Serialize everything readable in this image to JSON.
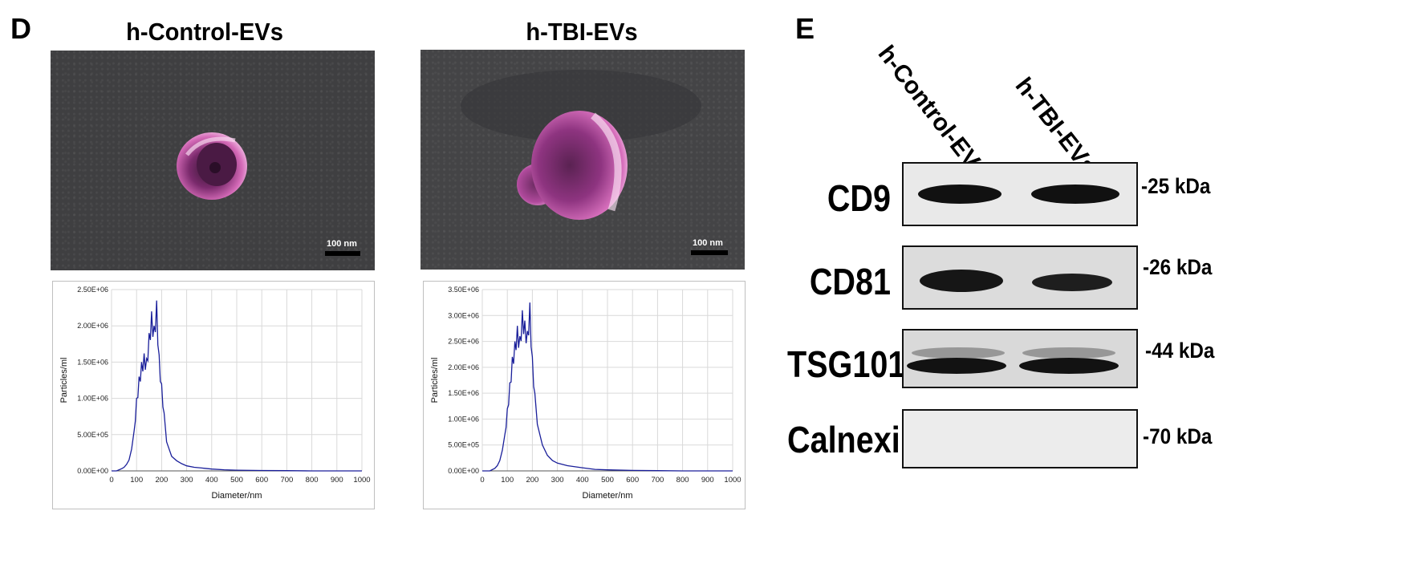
{
  "panels": {
    "d_letter": "D",
    "e_letter": "E"
  },
  "tem": [
    {
      "title": "h-Control-EVs",
      "scale_label": "100 nm"
    },
    {
      "title": "h-TBI-EVs",
      "scale_label": "100 nm"
    }
  ],
  "western_blot": {
    "lanes": [
      "h-Control-EVs",
      "h-TBI-EVs"
    ],
    "proteins": [
      {
        "name": "CD9",
        "marker": "-25 kDa"
      },
      {
        "name": "CD81",
        "marker": "-26 kDa"
      },
      {
        "name": "TSG101",
        "marker": "-44 kDa"
      },
      {
        "name": "Calnexin",
        "marker": "-70 kDa"
      }
    ]
  },
  "colors": {
    "tem_background": "#3f3f41",
    "vesicle_stain": "#c0489e",
    "line": "#1a1f9a",
    "grid": "#d9d9d9"
  },
  "chart_data": [
    {
      "type": "line",
      "title": "h-Control-EVs",
      "xlabel": "Diameter/nm",
      "ylabel": "Particles/ml",
      "xlim": [
        0,
        1000
      ],
      "ylim": [
        0,
        2500000
      ],
      "xticks": [
        "0",
        "100",
        "200",
        "300",
        "400",
        "500",
        "600",
        "700",
        "800",
        "900",
        "1000"
      ],
      "yticks": [
        "0.00E+00",
        "5.00E+05",
        "1.00E+06",
        "1.50E+06",
        "2.00E+06",
        "2.50E+06"
      ],
      "grid": true,
      "x": [
        0,
        20,
        40,
        50,
        60,
        70,
        80,
        90,
        100,
        110,
        120,
        130,
        140,
        150,
        160,
        170,
        180,
        190,
        200,
        210,
        220,
        240,
        260,
        280,
        300,
        330,
        360,
        400,
        450,
        500,
        600,
        700,
        800,
        900,
        1000
      ],
      "y": [
        0,
        0,
        30000,
        50000,
        90000,
        150000,
        300000,
        550000,
        1000000,
        1300000,
        1500000,
        1620000,
        1550000,
        1900000,
        2200000,
        2000000,
        2350000,
        1600000,
        1200000,
        800000,
        400000,
        200000,
        140000,
        100000,
        70000,
        50000,
        40000,
        25000,
        15000,
        10000,
        5000,
        3000,
        0,
        0,
        0
      ]
    },
    {
      "type": "line",
      "title": "h-TBI-EVs",
      "xlabel": "Diameter/nm",
      "ylabel": "Particles/ml",
      "xlim": [
        0,
        1000
      ],
      "ylim": [
        0,
        3500000
      ],
      "xticks": [
        "0",
        "100",
        "200",
        "300",
        "400",
        "500",
        "600",
        "700",
        "800",
        "900",
        "1000"
      ],
      "yticks": [
        "0.00E+00",
        "5.00E+05",
        "1.00E+06",
        "1.50E+06",
        "2.00E+06",
        "2.50E+06",
        "3.00E+06",
        "3.50E+06"
      ],
      "grid": true,
      "x": [
        0,
        30,
        50,
        60,
        70,
        80,
        90,
        100,
        110,
        120,
        130,
        140,
        150,
        160,
        170,
        180,
        190,
        200,
        210,
        220,
        240,
        260,
        280,
        300,
        340,
        400,
        450,
        500,
        600,
        700,
        800,
        900,
        1000
      ],
      "y": [
        0,
        0,
        50000,
        100000,
        200000,
        400000,
        700000,
        1200000,
        1700000,
        2200000,
        2500000,
        2800000,
        2600000,
        3100000,
        2900000,
        2700000,
        3250000,
        2200000,
        1500000,
        900000,
        500000,
        300000,
        200000,
        150000,
        100000,
        60000,
        30000,
        20000,
        10000,
        5000,
        0,
        0,
        0
      ]
    }
  ]
}
